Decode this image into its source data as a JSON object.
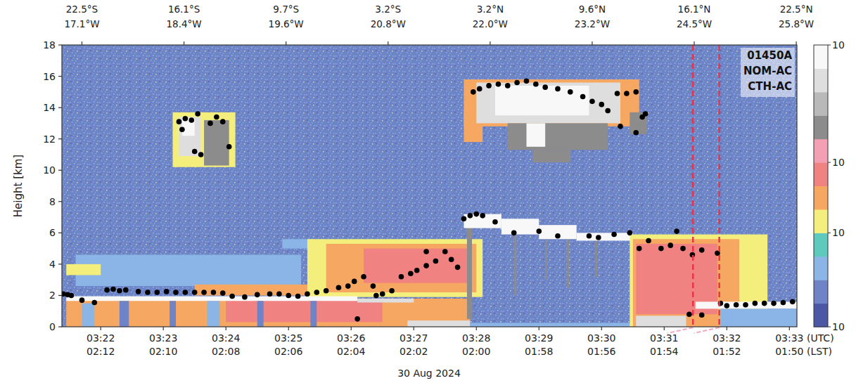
{
  "chart_data": {
    "type": "heatmap",
    "ylabel": "Height [km]",
    "xlim": [
      21.38,
      33.12
    ],
    "ylim": [
      0,
      18
    ],
    "yticks": [
      0,
      2,
      4,
      6,
      8,
      10,
      12,
      14,
      16,
      18
    ],
    "xticks": [
      {
        "value": 22,
        "label": "03:22"
      },
      {
        "value": 23,
        "label": "03:23"
      },
      {
        "value": 24,
        "label": "03:24"
      },
      {
        "value": 25,
        "label": "03:25"
      },
      {
        "value": 26,
        "label": "03:26"
      },
      {
        "value": 27,
        "label": "03:27"
      },
      {
        "value": 28,
        "label": "03:28"
      },
      {
        "value": 29,
        "label": "03:29"
      },
      {
        "value": 30,
        "label": "03:30"
      },
      {
        "value": 31,
        "label": "03:31"
      },
      {
        "value": 32,
        "label": "03:32"
      },
      {
        "value": 33,
        "label": "03:33 (UTC)"
      }
    ],
    "xtick_lst_labels": [
      "02:12",
      "02:10",
      "02:08",
      "02:06",
      "02:04",
      "02:02",
      "02:00",
      "01:58",
      "01:56",
      "01:54",
      "01:52",
      "01:50 (LST)"
    ],
    "date_label": "30 Aug 2024",
    "top_ticks": [
      {
        "value": 21.7,
        "label": "22.5°S",
        "label2": "17.1°W"
      },
      {
        "value": 23.33,
        "label": "16.1°S",
        "label2": "18.4°W"
      },
      {
        "value": 24.96,
        "label": "9.7°S",
        "label2": "19.6°W"
      },
      {
        "value": 26.59,
        "label": "3.2°S",
        "label2": "20.8°W"
      },
      {
        "value": 28.22,
        "label": "3.2°N",
        "label2": "22.0°W"
      },
      {
        "value": 29.85,
        "label": "9.6°N",
        "label2": "23.2°W"
      },
      {
        "value": 31.48,
        "label": "16.1°N",
        "label2": "24.5°W"
      },
      {
        "value": 33.11,
        "label": "22.5°N",
        "label2": "25.8°W"
      }
    ],
    "annotation": [
      "01450A",
      "NOM-AC",
      "CTH-AC"
    ],
    "colorbar": {
      "bounds": [
        1e-07,
        1.78e-07,
        3.16e-07,
        5.62e-07,
        1e-06,
        2.14e-06,
        4.68e-06,
        1e-05,
        1.58e-05,
        2.51e-05,
        3.98e-05,
        6.31e-05,
        0.0001
      ],
      "colors": [
        "#4c58a3",
        "#6e84c6",
        "#8bb5e6",
        "#5ec9bd",
        "#f4ef7c",
        "#f6a862",
        "#f08282",
        "#f4a0b4",
        "#8c8c8c",
        "#b9b9b9",
        "#dedede",
        "#f8f8f8"
      ],
      "ticks": [
        {
          "value": 1e-07,
          "label": "10"
        },
        {
          "value": 1e-06,
          "label": "10"
        },
        {
          "value": 1e-05,
          "label": "10"
        },
        {
          "value": 0.0001,
          "label": "10"
        }
      ]
    },
    "cells": [
      {
        "x0": 21.38,
        "x1": 33.12,
        "y0": 0,
        "y1": 18,
        "value": 2.5e-07
      },
      {
        "x0": 21.6,
        "x1": 25.2,
        "y0": 2.6,
        "y1": 4.6,
        "value": 4e-07
      },
      {
        "x0": 21.45,
        "x1": 22.0,
        "y0": 3.3,
        "y1": 4.0,
        "value": 1.2e-06
      },
      {
        "x0": 24.9,
        "x1": 25.4,
        "y0": 5.0,
        "y1": 5.6,
        "value": 4e-07
      },
      {
        "x0": 23.5,
        "x1": 25.8,
        "y0": 2.0,
        "y1": 2.7,
        "value": 3e-06
      },
      {
        "x0": 25.3,
        "x1": 28.1,
        "y0": 1.9,
        "y1": 5.6,
        "value": 1.2e-06
      },
      {
        "x0": 25.6,
        "x1": 28.0,
        "y0": 2.2,
        "y1": 5.3,
        "value": 3e-06
      },
      {
        "x0": 26.2,
        "x1": 27.85,
        "y0": 2.8,
        "y1": 5.0,
        "value": 6e-06
      },
      {
        "x0": 21.45,
        "x1": 27.9,
        "y0": 0,
        "y1": 1.8,
        "value": 3e-06
      },
      {
        "x0": 24.0,
        "x1": 26.5,
        "y0": 0.3,
        "y1": 1.7,
        "value": 6e-06
      },
      {
        "x0": 21.45,
        "x1": 26.1,
        "y0": 1.65,
        "y1": 1.95,
        "value": 8e-05
      },
      {
        "x0": 26.1,
        "x1": 27.0,
        "y0": 1.55,
        "y1": 1.8,
        "value": 5e-05
      },
      {
        "x0": 22.3,
        "x1": 22.45,
        "y0": 0,
        "y1": 1.65,
        "value": 2.5e-07
      },
      {
        "x0": 23.1,
        "x1": 23.2,
        "y0": 0,
        "y1": 1.65,
        "value": 2.5e-07
      },
      {
        "x0": 23.7,
        "x1": 23.9,
        "y0": 0,
        "y1": 1.65,
        "value": 4e-07
      },
      {
        "x0": 24.5,
        "x1": 24.6,
        "y0": 0,
        "y1": 1.65,
        "value": 2.5e-07
      },
      {
        "x0": 25.35,
        "x1": 25.45,
        "y0": 0,
        "y1": 1.65,
        "value": 2.5e-07
      },
      {
        "x0": 21.7,
        "x1": 21.9,
        "y0": 0,
        "y1": 1.5,
        "value": 4e-07
      },
      {
        "x0": 26.9,
        "x1": 27.9,
        "y0": 0,
        "y1": 0.4,
        "value": 5e-05
      },
      {
        "x0": 23.15,
        "x1": 24.15,
        "y0": 10.2,
        "y1": 13.7,
        "value": 1.2e-06
      },
      {
        "x0": 23.25,
        "x1": 23.6,
        "y0": 10.9,
        "y1": 13.4,
        "value": 5e-05
      },
      {
        "x0": 23.65,
        "x1": 24.05,
        "y0": 10.3,
        "y1": 13.2,
        "value": 2e-05
      },
      {
        "x0": 23.3,
        "x1": 23.5,
        "y0": 12.2,
        "y1": 13.3,
        "value": 8e-05
      },
      {
        "x0": 27.8,
        "x1": 30.6,
        "y0": 12.8,
        "y1": 15.8,
        "value": 3e-06
      },
      {
        "x0": 27.8,
        "x1": 28.1,
        "y0": 11.8,
        "y1": 13.8,
        "value": 3e-06
      },
      {
        "x0": 28.0,
        "x1": 30.3,
        "y0": 13.0,
        "y1": 15.6,
        "value": 5e-05
      },
      {
        "x0": 28.3,
        "x1": 29.8,
        "y0": 13.5,
        "y1": 15.4,
        "value": 8e-05
      },
      {
        "x0": 28.5,
        "x1": 30.1,
        "y0": 11.3,
        "y1": 13.0,
        "value": 2e-05
      },
      {
        "x0": 28.9,
        "x1": 29.5,
        "y0": 10.5,
        "y1": 11.3,
        "value": 2e-05
      },
      {
        "x0": 28.8,
        "x1": 29.1,
        "y0": 11.5,
        "y1": 13.0,
        "value": 8e-05
      },
      {
        "x0": 30.45,
        "x1": 30.72,
        "y0": 12.3,
        "y1": 13.7,
        "value": 2e-05
      },
      {
        "x0": 27.85,
        "x1": 27.93,
        "y0": 0.5,
        "y1": 6.5,
        "value": 2e-05
      },
      {
        "x0": 28.6,
        "x1": 28.64,
        "y0": 2.0,
        "y1": 5.9,
        "value": 2e-05
      },
      {
        "x0": 29.1,
        "x1": 29.13,
        "y0": 3.0,
        "y1": 5.6,
        "value": 2e-05
      },
      {
        "x0": 29.45,
        "x1": 29.48,
        "y0": 2.5,
        "y1": 5.6,
        "value": 2e-05
      },
      {
        "x0": 29.9,
        "x1": 29.93,
        "y0": 3.2,
        "y1": 5.5,
        "value": 2e-05
      },
      {
        "x0": 27.8,
        "x1": 28.4,
        "y0": 6.3,
        "y1": 7.2,
        "value": 8e-05
      },
      {
        "x0": 28.4,
        "x1": 29.0,
        "y0": 5.9,
        "y1": 6.9,
        "value": 8e-05
      },
      {
        "x0": 29.0,
        "x1": 29.6,
        "y0": 5.6,
        "y1": 6.5,
        "value": 8e-05
      },
      {
        "x0": 29.6,
        "x1": 30.5,
        "y0": 5.5,
        "y1": 6.0,
        "value": 8e-05
      },
      {
        "x0": 27.9,
        "x1": 30.5,
        "y0": 0,
        "y1": 0.25,
        "value": 4e-07
      },
      {
        "x0": 30.45,
        "x1": 32.65,
        "y0": 0,
        "y1": 5.9,
        "value": 1.2e-06
      },
      {
        "x0": 30.5,
        "x1": 32.2,
        "y0": 0,
        "y1": 5.6,
        "value": 3e-06
      },
      {
        "x0": 30.55,
        "x1": 31.85,
        "y0": 0.8,
        "y1": 5.3,
        "value": 6e-06
      },
      {
        "x0": 30.55,
        "x1": 31.35,
        "y0": 0,
        "y1": 0.7,
        "value": 5e-05
      },
      {
        "x0": 31.5,
        "x1": 33.12,
        "y0": 1.15,
        "y1": 1.6,
        "value": 8e-05
      },
      {
        "x0": 31.9,
        "x1": 33.12,
        "y0": 0,
        "y1": 1.15,
        "value": 4e-07
      }
    ],
    "cloud_top": {
      "color": "#000000",
      "marker": "circle",
      "x": [
        21.4,
        21.47,
        21.53,
        21.7,
        21.9,
        22.1,
        22.2,
        22.3,
        22.4,
        22.6,
        22.75,
        22.9,
        23.05,
        23.2,
        23.35,
        23.5,
        23.65,
        23.8,
        23.95,
        24.1,
        24.3,
        24.5,
        24.7,
        24.85,
        25.0,
        25.15,
        25.3,
        25.45,
        25.6,
        25.8,
        25.95,
        26.05,
        26.2,
        26.35,
        26.5,
        26.65,
        26.8,
        26.95,
        27.05,
        27.2,
        27.35,
        27.5,
        27.6,
        27.7,
        27.2,
        26.4,
        26.1,
        23.25,
        23.35,
        23.45,
        23.55,
        23.3,
        23.5,
        23.6,
        23.75,
        23.85,
        23.95,
        24.05,
        27.8,
        27.9,
        28.0,
        28.1,
        28.3,
        28.6,
        29.0,
        29.3,
        29.8,
        29.95,
        30.2,
        30.45,
        27.95,
        28.05,
        28.2,
        28.35,
        28.5,
        28.65,
        28.8,
        28.95,
        29.1,
        29.3,
        29.5,
        29.7,
        29.85,
        30.0,
        30.1,
        30.25,
        30.4,
        30.55,
        30.3,
        30.55,
        30.65,
        30.7,
        30.6,
        30.75,
        30.95,
        31.1,
        31.3,
        31.45,
        31.6,
        31.85,
        31.2,
        31.4,
        31.6,
        31.9,
        32.0,
        32.15,
        32.3,
        32.45,
        32.6,
        32.75,
        32.9,
        33.05
      ],
      "y": [
        2.1,
        2.05,
        2.0,
        1.7,
        1.55,
        2.35,
        2.4,
        2.3,
        2.35,
        2.25,
        2.2,
        2.2,
        2.25,
        2.2,
        2.2,
        2.2,
        2.2,
        2.2,
        2.15,
        1.95,
        1.9,
        2.05,
        2.1,
        2.1,
        2.0,
        1.95,
        2.1,
        2.2,
        2.3,
        2.5,
        2.6,
        2.9,
        3.2,
        2.6,
        2.1,
        2.3,
        3.2,
        3.4,
        3.6,
        3.9,
        4.2,
        4.8,
        4.3,
        3.8,
        4.8,
        2.0,
        0.5,
        13.1,
        13.3,
        13.2,
        13.6,
        12.6,
        11.2,
        11.0,
        13.0,
        13.4,
        13.1,
        11.5,
        6.9,
        7.1,
        7.2,
        7.1,
        6.7,
        6.0,
        6.1,
        5.8,
        5.8,
        5.7,
        5.9,
        6.0,
        15.0,
        15.2,
        15.4,
        15.5,
        15.4,
        15.6,
        15.7,
        15.5,
        15.3,
        15.2,
        15.0,
        14.7,
        14.4,
        14.2,
        13.8,
        14.9,
        14.9,
        15.0,
        12.8,
        12.4,
        13.4,
        13.6,
        5.0,
        5.5,
        5.0,
        5.2,
        5.0,
        4.6,
        4.9,
        4.7,
        6.1,
        0.8,
        0.75,
        1.5,
        1.35,
        1.4,
        1.4,
        1.5,
        1.5,
        1.5,
        1.55,
        1.6
      ]
    },
    "vlines": {
      "x": [
        31.46,
        31.88
      ],
      "color": "#e8334a",
      "line_style": "dashed"
    }
  }
}
